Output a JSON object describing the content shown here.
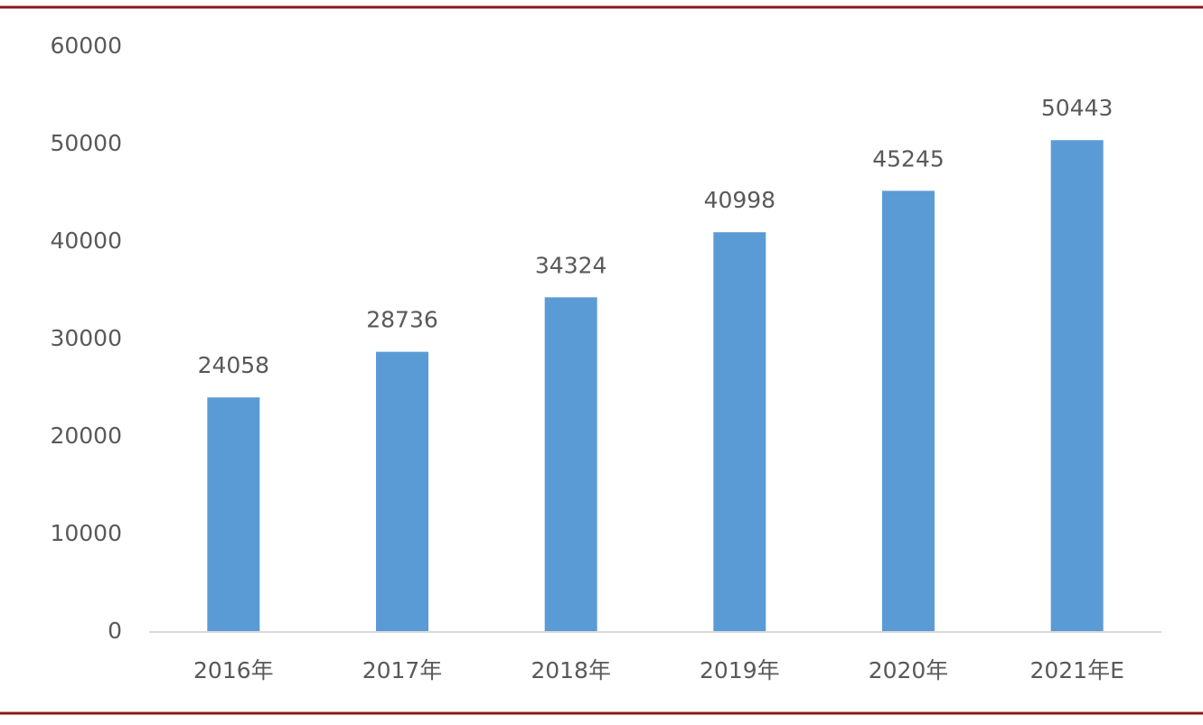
{
  "chart_data": {
    "type": "bar",
    "categories": [
      "2016年",
      "2017年",
      "2018年",
      "2019年",
      "2020年",
      "2021年E"
    ],
    "values": [
      24058,
      28736,
      34324,
      40998,
      45245,
      50443
    ],
    "color": "#5b9bd5",
    "ylim": [
      0,
      60000
    ],
    "yticks": [
      0,
      10000,
      20000,
      30000,
      40000,
      50000,
      60000
    ],
    "grid": false,
    "data_labels": true
  }
}
